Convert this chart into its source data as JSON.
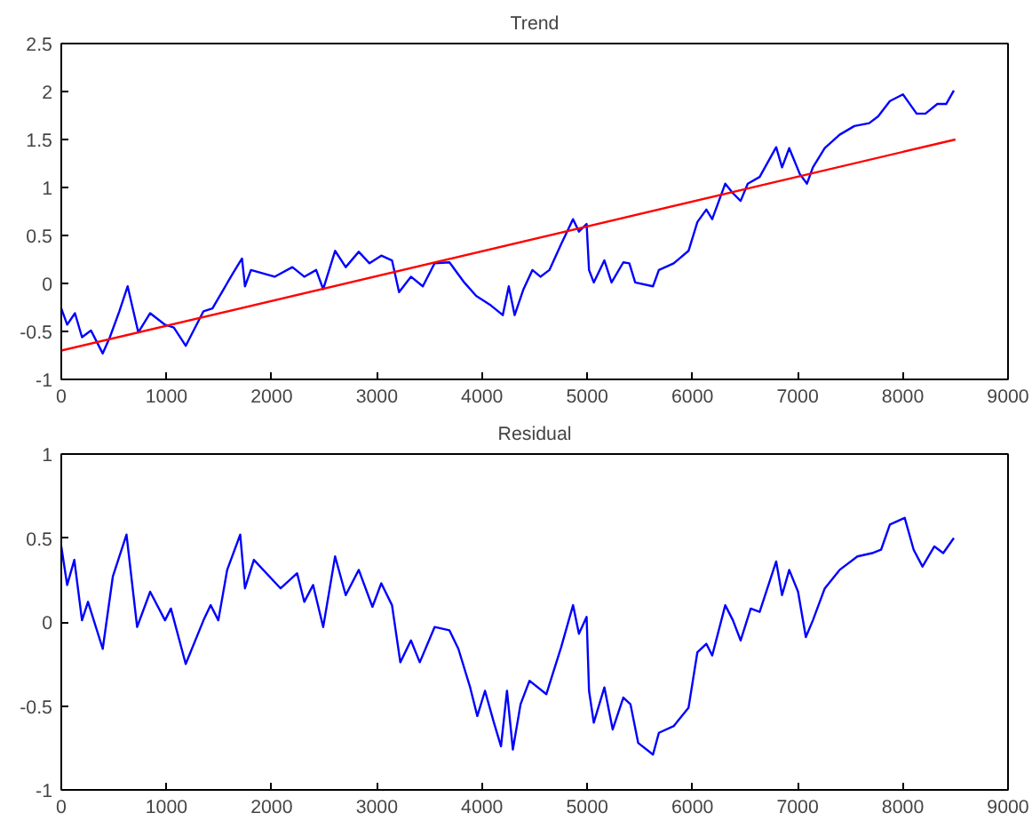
{
  "chart_data": [
    {
      "type": "line",
      "title": "Trend",
      "xlim": [
        0,
        9000
      ],
      "xticks": [
        0,
        1000,
        2000,
        3000,
        4000,
        5000,
        6000,
        7000,
        8000,
        9000
      ],
      "ylim": [
        -1,
        2.5
      ],
      "yticks": [
        -1,
        -0.5,
        0,
        0.5,
        1,
        1.5,
        2,
        2.5
      ],
      "grid": false,
      "series": [
        {
          "color": "#0000ff",
          "x": [
            0,
            56,
            130,
            197,
            282,
            394,
            462,
            552,
            631,
            732,
            845,
            986,
            1070,
            1183,
            1352,
            1437,
            1634,
            1718,
            1746,
            1803,
            2028,
            2197,
            2310,
            2423,
            2490,
            2603,
            2704,
            2828,
            2930,
            3042,
            3144,
            3211,
            3324,
            3437,
            3549,
            3690,
            3831,
            3944,
            4085,
            4197,
            4254,
            4310,
            4394,
            4479,
            4555,
            4640,
            4752,
            4865,
            4921,
            4994,
            5017,
            5062,
            5163,
            5231,
            5343,
            5400,
            5456,
            5625,
            5681,
            5822,
            5963,
            6047,
            6132,
            6188,
            6312,
            6385,
            6458,
            6526,
            6639,
            6796,
            6852,
            6920,
            7021,
            7089,
            7145,
            7258,
            7399,
            7539,
            7680,
            7765,
            7877,
            8001,
            8131,
            8215,
            8328,
            8412,
            8485
          ],
          "values": [
            -0.26,
            -0.43,
            -0.31,
            -0.56,
            -0.49,
            -0.73,
            -0.56,
            -0.29,
            -0.03,
            -0.51,
            -0.31,
            -0.43,
            -0.46,
            -0.65,
            -0.29,
            -0.26,
            0.11,
            0.26,
            -0.03,
            0.14,
            0.07,
            0.17,
            0.07,
            0.14,
            -0.06,
            0.34,
            0.17,
            0.33,
            0.21,
            0.29,
            0.24,
            -0.09,
            0.07,
            -0.03,
            0.21,
            0.22,
            0.01,
            -0.13,
            -0.23,
            -0.33,
            -0.03,
            -0.33,
            -0.06,
            0.14,
            0.07,
            0.14,
            0.41,
            0.67,
            0.54,
            0.62,
            0.14,
            0.01,
            0.24,
            0.01,
            0.22,
            0.21,
            0.01,
            -0.03,
            0.14,
            0.21,
            0.34,
            0.64,
            0.77,
            0.67,
            1.04,
            0.94,
            0.86,
            1.04,
            1.11,
            1.42,
            1.21,
            1.41,
            1.14,
            1.04,
            1.21,
            1.41,
            1.55,
            1.64,
            1.67,
            1.74,
            1.9,
            1.97,
            1.77,
            1.77,
            1.87,
            1.87,
            2.01
          ]
        },
        {
          "color": "#ff0000",
          "x": [
            0,
            8500
          ],
          "values": [
            -0.7,
            1.5
          ]
        }
      ]
    },
    {
      "type": "line",
      "title": "Residual",
      "xlim": [
        0,
        9000
      ],
      "xticks": [
        0,
        1000,
        2000,
        3000,
        4000,
        5000,
        6000,
        7000,
        8000,
        9000
      ],
      "ylim": [
        -1,
        1
      ],
      "yticks": [
        -1,
        -0.5,
        0,
        0.5,
        1
      ],
      "grid": false,
      "series": [
        {
          "color": "#0000ff",
          "x": [
            0,
            56,
            124,
            197,
            254,
            394,
            490,
            620,
            721,
            845,
            986,
            1042,
            1183,
            1352,
            1420,
            1493,
            1577,
            1701,
            1746,
            1831,
            2085,
            2242,
            2310,
            2394,
            2490,
            2603,
            2704,
            2828,
            2958,
            3042,
            3144,
            3223,
            3324,
            3408,
            3549,
            3690,
            3775,
            3887,
            3955,
            4028,
            4113,
            4180,
            4237,
            4293,
            4366,
            4451,
            4611,
            4752,
            4865,
            4921,
            4994,
            5017,
            5062,
            5163,
            5242,
            5343,
            5411,
            5484,
            5625,
            5681,
            5822,
            5963,
            6047,
            6132,
            6188,
            6312,
            6385,
            6458,
            6554,
            6639,
            6796,
            6852,
            6920,
            7004,
            7078,
            7145,
            7258,
            7399,
            7568,
            7708,
            7793,
            7877,
            8018,
            8103,
            8187,
            8300,
            8384,
            8485
          ],
          "values": [
            0.45,
            0.22,
            0.37,
            0.01,
            0.12,
            -0.16,
            0.27,
            0.52,
            -0.03,
            0.18,
            0.01,
            0.08,
            -0.25,
            0.01,
            0.1,
            0.01,
            0.31,
            0.52,
            0.2,
            0.37,
            0.2,
            0.29,
            0.12,
            0.22,
            -0.03,
            0.39,
            0.16,
            0.31,
            0.09,
            0.23,
            0.1,
            -0.24,
            -0.11,
            -0.24,
            -0.03,
            -0.05,
            -0.16,
            -0.39,
            -0.56,
            -0.41,
            -0.6,
            -0.74,
            -0.41,
            -0.76,
            -0.49,
            -0.35,
            -0.43,
            -0.15,
            0.1,
            -0.07,
            0.03,
            -0.41,
            -0.6,
            -0.39,
            -0.64,
            -0.45,
            -0.49,
            -0.72,
            -0.79,
            -0.66,
            -0.62,
            -0.51,
            -0.18,
            -0.13,
            -0.2,
            0.1,
            0.01,
            -0.11,
            0.08,
            0.06,
            0.36,
            0.16,
            0.31,
            0.18,
            -0.09,
            0.01,
            0.2,
            0.31,
            0.39,
            0.41,
            0.43,
            0.58,
            0.62,
            0.43,
            0.33,
            0.45,
            0.41,
            0.5
          ]
        }
      ]
    }
  ]
}
